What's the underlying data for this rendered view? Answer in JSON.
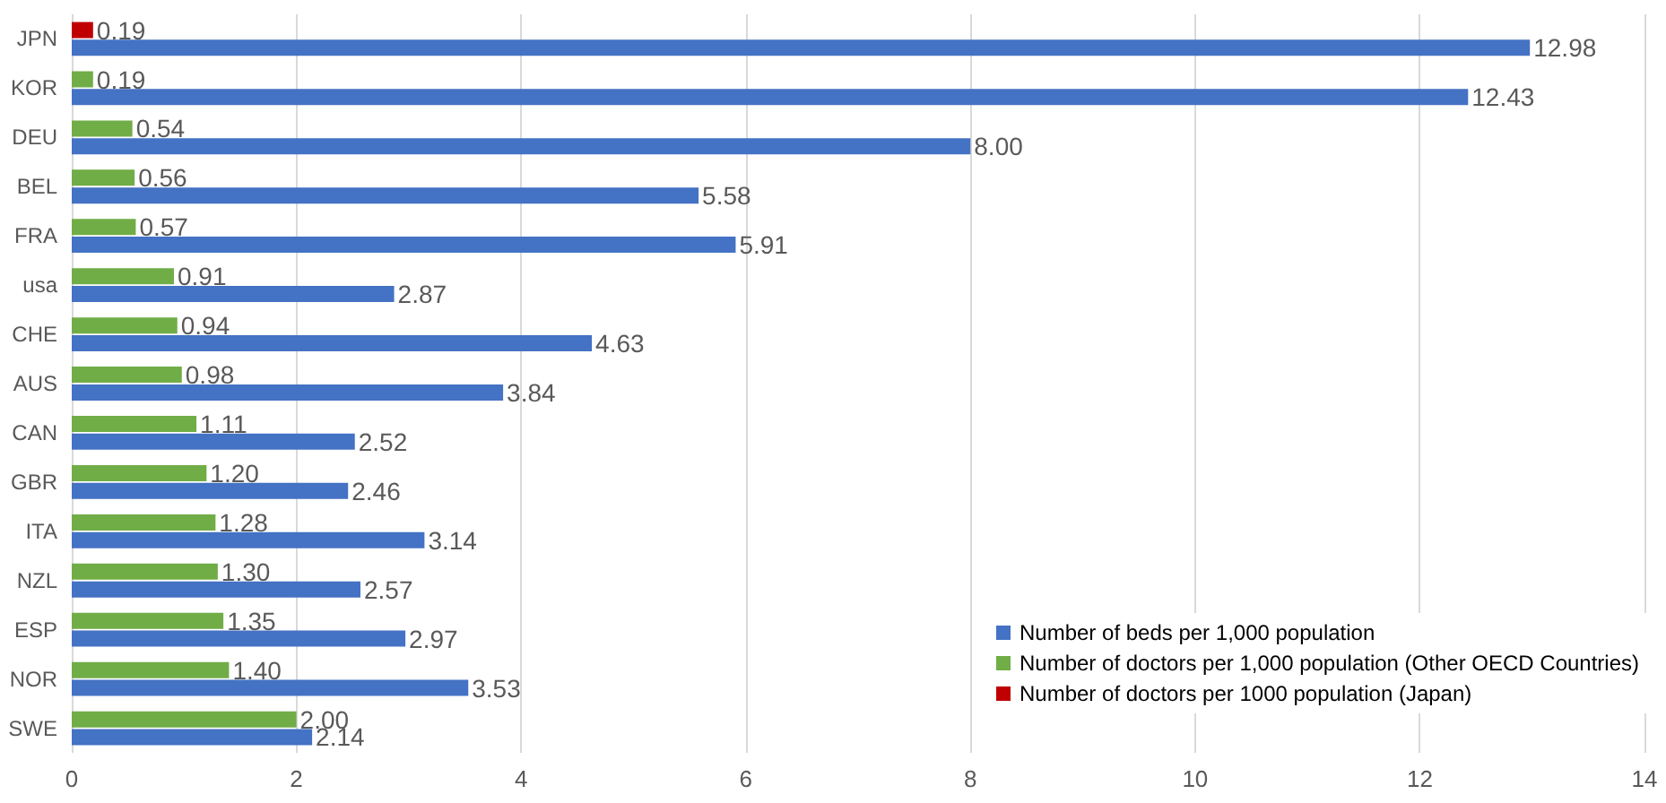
{
  "chart_data": {
    "type": "bar",
    "orientation": "horizontal",
    "categories": [
      "JPN",
      "KOR",
      "DEU",
      "BEL",
      "FRA",
      "usa",
      "CHE",
      "AUS",
      "CAN",
      "GBR",
      "ITA",
      "NZL",
      "ESP",
      "NOR",
      "SWE"
    ],
    "series": [
      {
        "name": "Number of beds per 1,000 population",
        "color": "#4472c4",
        "values": [
          12.98,
          12.43,
          8.0,
          5.58,
          5.91,
          2.87,
          4.63,
          3.84,
          2.52,
          2.46,
          3.14,
          2.57,
          2.97,
          3.53,
          2.14
        ],
        "value_labels": [
          "12.98",
          "12.43",
          "8.00",
          "5.58",
          "5.91",
          "2.87",
          "4.63",
          "3.84",
          "2.52",
          "2.46",
          "3.14",
          "2.57",
          "2.97",
          "3.53",
          "2.14"
        ]
      },
      {
        "name": "Number of doctors per 1,000 population (Other OECD Countries)",
        "color": "#70ad47",
        "values": [
          null,
          0.19,
          0.54,
          0.56,
          0.57,
          0.91,
          0.94,
          0.98,
          1.11,
          1.2,
          1.28,
          1.3,
          1.35,
          1.4,
          2.0
        ],
        "value_labels": [
          null,
          "0.19",
          "0.54",
          "0.56",
          "0.57",
          "0.91",
          "0.94",
          "0.98",
          "1.11",
          "1.20",
          "1.28",
          "1.30",
          "1.35",
          "1.40",
          "2.00"
        ]
      },
      {
        "name": "Number of doctors per 1000 population (Japan)",
        "color": "#c00000",
        "values": [
          0.19,
          null,
          null,
          null,
          null,
          null,
          null,
          null,
          null,
          null,
          null,
          null,
          null,
          null,
          null
        ],
        "value_labels": [
          "0.19",
          null,
          null,
          null,
          null,
          null,
          null,
          null,
          null,
          null,
          null,
          null,
          null,
          null,
          null
        ]
      }
    ],
    "xlim": [
      0,
      14
    ],
    "xticks": [
      0,
      2,
      4,
      6,
      8,
      10,
      12,
      14
    ],
    "grid": "x",
    "legend": "bottom right"
  }
}
